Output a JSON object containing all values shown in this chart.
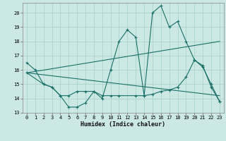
{
  "xlabel": "Humidex (Indice chaleur)",
  "bg_color": "#cce8e4",
  "grid_color": "#aad4cc",
  "line_color": "#1a7068",
  "xlim": [
    -0.5,
    23.5
  ],
  "ylim": [
    13,
    20.7
  ],
  "yticks": [
    13,
    14,
    15,
    16,
    17,
    18,
    19,
    20
  ],
  "xticks": [
    0,
    1,
    2,
    3,
    4,
    5,
    6,
    7,
    8,
    9,
    10,
    11,
    12,
    13,
    14,
    15,
    16,
    17,
    18,
    19,
    20,
    21,
    22,
    23
  ],
  "line1_x": [
    0,
    1,
    2,
    3,
    4,
    5,
    6,
    7,
    8,
    9,
    10,
    11,
    12,
    13,
    14,
    15,
    16,
    17,
    18,
    19,
    20,
    21,
    22,
    23
  ],
  "line1_y": [
    16.5,
    16.0,
    15.0,
    14.8,
    14.2,
    13.4,
    13.4,
    13.7,
    14.5,
    14.0,
    16.0,
    18.0,
    18.8,
    18.3,
    14.2,
    20.0,
    20.5,
    19.0,
    19.4,
    18.0,
    16.7,
    16.2,
    15.0,
    13.8
  ],
  "line2_x": [
    0,
    2,
    3,
    4,
    5,
    6,
    7,
    8,
    9,
    10,
    11,
    13,
    14,
    15,
    16,
    17,
    18,
    19,
    20,
    21,
    22,
    23
  ],
  "line2_y": [
    15.8,
    15.0,
    14.8,
    14.2,
    14.2,
    14.5,
    14.5,
    14.5,
    14.2,
    14.2,
    14.2,
    14.2,
    14.2,
    14.3,
    14.5,
    14.6,
    14.8,
    15.5,
    16.7,
    16.3,
    14.8,
    13.8
  ],
  "line3_x": [
    0,
    23
  ],
  "line3_y": [
    15.8,
    18.0
  ],
  "line4_x": [
    0,
    23
  ],
  "line4_y": [
    15.8,
    14.2
  ]
}
